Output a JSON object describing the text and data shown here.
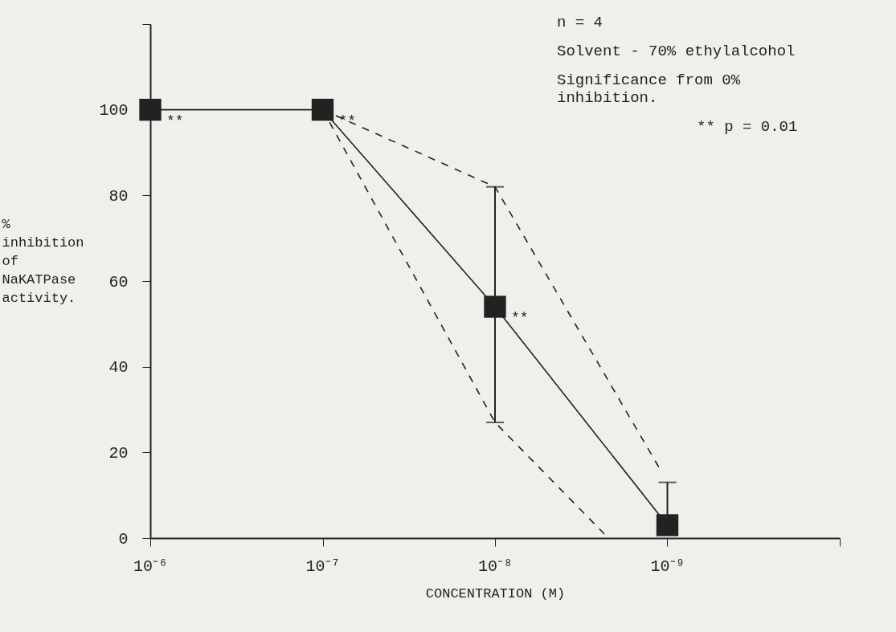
{
  "chart_data": {
    "type": "line",
    "xlabel": "CONCENTRATION (M)",
    "ylabel": "% inhibition of NaKATPase activity.",
    "log": "x",
    "xlim": [
      1e-06,
      1e-10
    ],
    "xticks": [
      {
        "value": 1e-06,
        "label": "10⁻⁶"
      },
      {
        "value": 1e-07,
        "label": "10⁻⁷"
      },
      {
        "value": 1e-08,
        "label": "10⁻⁸"
      },
      {
        "value": 1e-09,
        "label": "10⁻⁹"
      },
      {
        "value": 1e-10,
        "label": null
      }
    ],
    "ylim": [
      0,
      120
    ],
    "yticks": [
      0,
      20,
      40,
      60,
      80,
      100,
      {
        "value": 120,
        "label": null
      }
    ],
    "grid": false,
    "x": [
      1e-06,
      1e-07,
      1e-08,
      1e-09
    ],
    "series": [
      {
        "color": "#222222",
        "marker": "square",
        "line_style": "solid",
        "values": [
          100,
          100,
          54,
          3
        ],
        "errors": [
          null,
          null,
          [
            27,
            82
          ],
          [
            3,
            13
          ]
        ]
      },
      {
        "type": "line",
        "color": "#222222",
        "marker": "none",
        "line_style": "dashed",
        "x": [
          1e-07,
          1e-08,
          1.1e-09
        ],
        "values": [
          100,
          82,
          16
        ]
      },
      {
        "type": "line",
        "color": "#222222",
        "marker": "none",
        "line_style": "dashed",
        "x": [
          1e-07,
          1e-08,
          2.2e-09
        ],
        "values": [
          100,
          27,
          0
        ]
      }
    ],
    "annotations": [
      {
        "text": "**",
        "x": 1e-06,
        "y": 100
      },
      {
        "text": "**",
        "x": 1e-07,
        "y": 100
      },
      {
        "text": "**",
        "x": 1e-08,
        "y": 54
      },
      "n = 4",
      "Solvent - 70% ethylalcohol",
      "Significance from 0% inhibition.",
      "** p = 0.01"
    ]
  }
}
